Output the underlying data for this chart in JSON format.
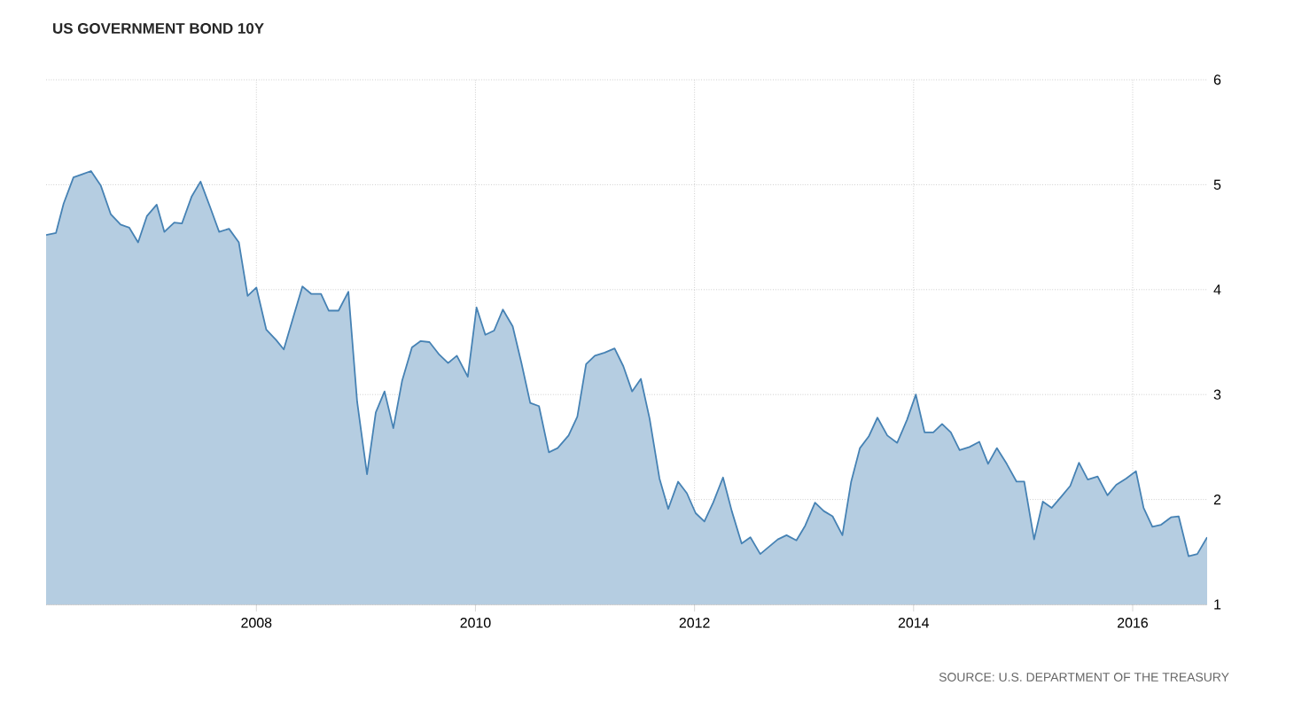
{
  "chart_data": {
    "type": "area",
    "title": "US GOVERNMENT BOND 10Y",
    "annotations": [
      "SOURCE: U.S. DEPARTMENT OF THE TREASURY"
    ],
    "color": "#4682b4",
    "x": [
      2006.08,
      2006.17,
      2006.24,
      2006.33,
      2006.41,
      2006.49,
      2006.58,
      2006.67,
      2006.76,
      2006.84,
      2006.92,
      2007.0,
      2007.09,
      2007.16,
      2007.25,
      2007.32,
      2007.41,
      2007.49,
      2007.58,
      2007.66,
      2007.75,
      2007.84,
      2007.92,
      2008.0,
      2008.09,
      2008.18,
      2008.25,
      2008.34,
      2008.42,
      2008.5,
      2008.59,
      2008.66,
      2008.75,
      2008.84,
      2008.92,
      2009.01,
      2009.09,
      2009.17,
      2009.25,
      2009.33,
      2009.42,
      2009.5,
      2009.58,
      2009.67,
      2009.75,
      2009.83,
      2009.93,
      2010.01,
      2010.09,
      2010.17,
      2010.25,
      2010.34,
      2010.42,
      2010.5,
      2010.58,
      2010.67,
      2010.75,
      2010.85,
      2010.93,
      2011.01,
      2011.09,
      2011.18,
      2011.27,
      2011.35,
      2011.43,
      2011.51,
      2011.59,
      2011.68,
      2011.76,
      2011.85,
      2011.93,
      2012.01,
      2012.09,
      2012.17,
      2012.26,
      2012.34,
      2012.43,
      2012.51,
      2012.6,
      2012.68,
      2012.76,
      2012.84,
      2012.93,
      2013.01,
      2013.1,
      2013.18,
      2013.26,
      2013.35,
      2013.43,
      2013.51,
      2013.59,
      2013.67,
      2013.76,
      2013.85,
      2013.94,
      2014.02,
      2014.1,
      2014.18,
      2014.26,
      2014.34,
      2014.42,
      2014.51,
      2014.6,
      2014.68,
      2014.76,
      2014.85,
      2014.94,
      2015.01,
      2015.1,
      2015.18,
      2015.26,
      2015.35,
      2015.43,
      2015.51,
      2015.59,
      2015.68,
      2015.77,
      2015.85,
      2015.94,
      2016.03,
      2016.1,
      2016.18,
      2016.26,
      2016.35,
      2016.42,
      2016.51,
      2016.59,
      2016.68
    ],
    "values": [
      4.52,
      4.54,
      4.82,
      5.07,
      5.1,
      5.13,
      4.99,
      4.72,
      4.62,
      4.59,
      4.45,
      4.7,
      4.81,
      4.55,
      4.64,
      4.63,
      4.89,
      5.03,
      4.78,
      4.55,
      4.58,
      4.45,
      3.94,
      4.02,
      3.62,
      3.52,
      3.43,
      3.75,
      4.03,
      3.96,
      3.96,
      3.8,
      3.8,
      3.98,
      2.93,
      2.24,
      2.83,
      3.03,
      2.68,
      3.13,
      3.45,
      3.51,
      3.5,
      3.38,
      3.3,
      3.37,
      3.17,
      3.83,
      3.57,
      3.61,
      3.81,
      3.65,
      3.3,
      2.92,
      2.89,
      2.45,
      2.49,
      2.61,
      2.79,
      3.29,
      3.37,
      3.4,
      3.44,
      3.27,
      3.03,
      3.15,
      2.77,
      2.2,
      1.91,
      2.17,
      2.06,
      1.87,
      1.79,
      1.97,
      2.21,
      1.89,
      1.58,
      1.64,
      1.48,
      1.55,
      1.62,
      1.66,
      1.61,
      1.75,
      1.97,
      1.89,
      1.84,
      1.66,
      2.17,
      2.49,
      2.6,
      2.78,
      2.61,
      2.54,
      2.76,
      3.0,
      2.64,
      2.64,
      2.72,
      2.64,
      2.47,
      2.5,
      2.55,
      2.34,
      2.49,
      2.34,
      2.17,
      2.17,
      1.62,
      1.98,
      1.92,
      2.03,
      2.13,
      2.35,
      2.19,
      2.22,
      2.04,
      2.14,
      2.2,
      2.27,
      1.92,
      1.74,
      1.76,
      1.83,
      1.84,
      1.46,
      1.48,
      1.64
    ],
    "xlim": [
      2006.08,
      2016.68
    ],
    "xticks": [
      2008,
      2010,
      2012,
      2014,
      2016
    ],
    "ylim": [
      1,
      6
    ],
    "yticks": [
      1,
      2,
      3,
      4,
      5,
      6
    ],
    "grid": true
  }
}
